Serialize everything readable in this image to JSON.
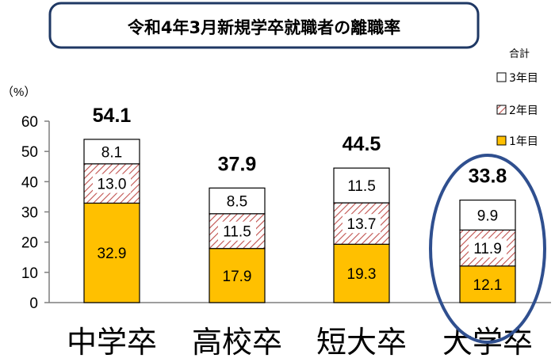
{
  "chart_data": {
    "type": "bar",
    "stacked": true,
    "title": "令和4年3月新規学卒就職者の離職率",
    "ylabel": "（%）",
    "ylim": [
      0,
      60
    ],
    "yticks": [
      "0",
      "10",
      "20",
      "30",
      "40",
      "50",
      "60"
    ],
    "categories": [
      "中学卒",
      "高校卒",
      "短大卒",
      "大学卒"
    ],
    "series": [
      {
        "name": "1年目",
        "values": [
          32.9,
          17.9,
          19.3,
          12.1
        ],
        "color": "#FFC000"
      },
      {
        "name": "2年目",
        "values": [
          13.0,
          11.5,
          13.7,
          11.9
        ],
        "color": "#C0504D",
        "pattern": "diagonal-hatch"
      },
      {
        "name": "3年目",
        "values": [
          8.1,
          8.5,
          11.5,
          9.9
        ],
        "color": "#FFFFFF"
      }
    ],
    "totals": [
      54.1,
      37.9,
      44.5,
      33.8
    ],
    "legend_title": "合計",
    "legend_position": "right",
    "highlight": "大学卒",
    "grid": false,
    "colors": {
      "title_border": "#1F3864",
      "highlight_ellipse": "#2F4F8F"
    }
  }
}
